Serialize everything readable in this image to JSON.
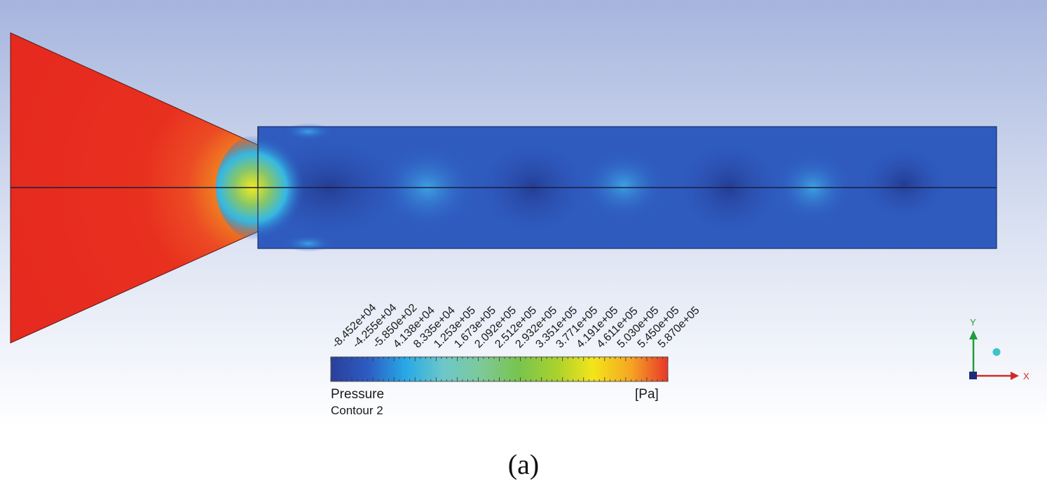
{
  "legend": {
    "variable": "Pressure",
    "contour": "Contour 2",
    "unit": "[Pa]",
    "ticks": [
      "-8.452e+04",
      "-4.255e+04",
      "-5.850e+02",
      "4.138e+04",
      "8.335e+04",
      "1.253e+05",
      "1.673e+05",
      "2.092e+05",
      "2.512e+05",
      "2.932e+05",
      "3.351e+05",
      "3.771e+05",
      "4.191e+05",
      "4.611e+05",
      "5.030e+05",
      "5.450e+05",
      "5.870e+05"
    ],
    "colors": [
      "#2a3f9b",
      "#2d5cc3",
      "#27a9e6",
      "#6cc7c9",
      "#7dc99a",
      "#78c44f",
      "#a8d12e",
      "#f3e51a",
      "#f5a623",
      "#e8362a"
    ]
  },
  "axes": {
    "x_label": "X",
    "y_label": "Y",
    "x_color": "#d02a2a",
    "y_color": "#1f9d3a"
  },
  "caption": "(a)"
}
